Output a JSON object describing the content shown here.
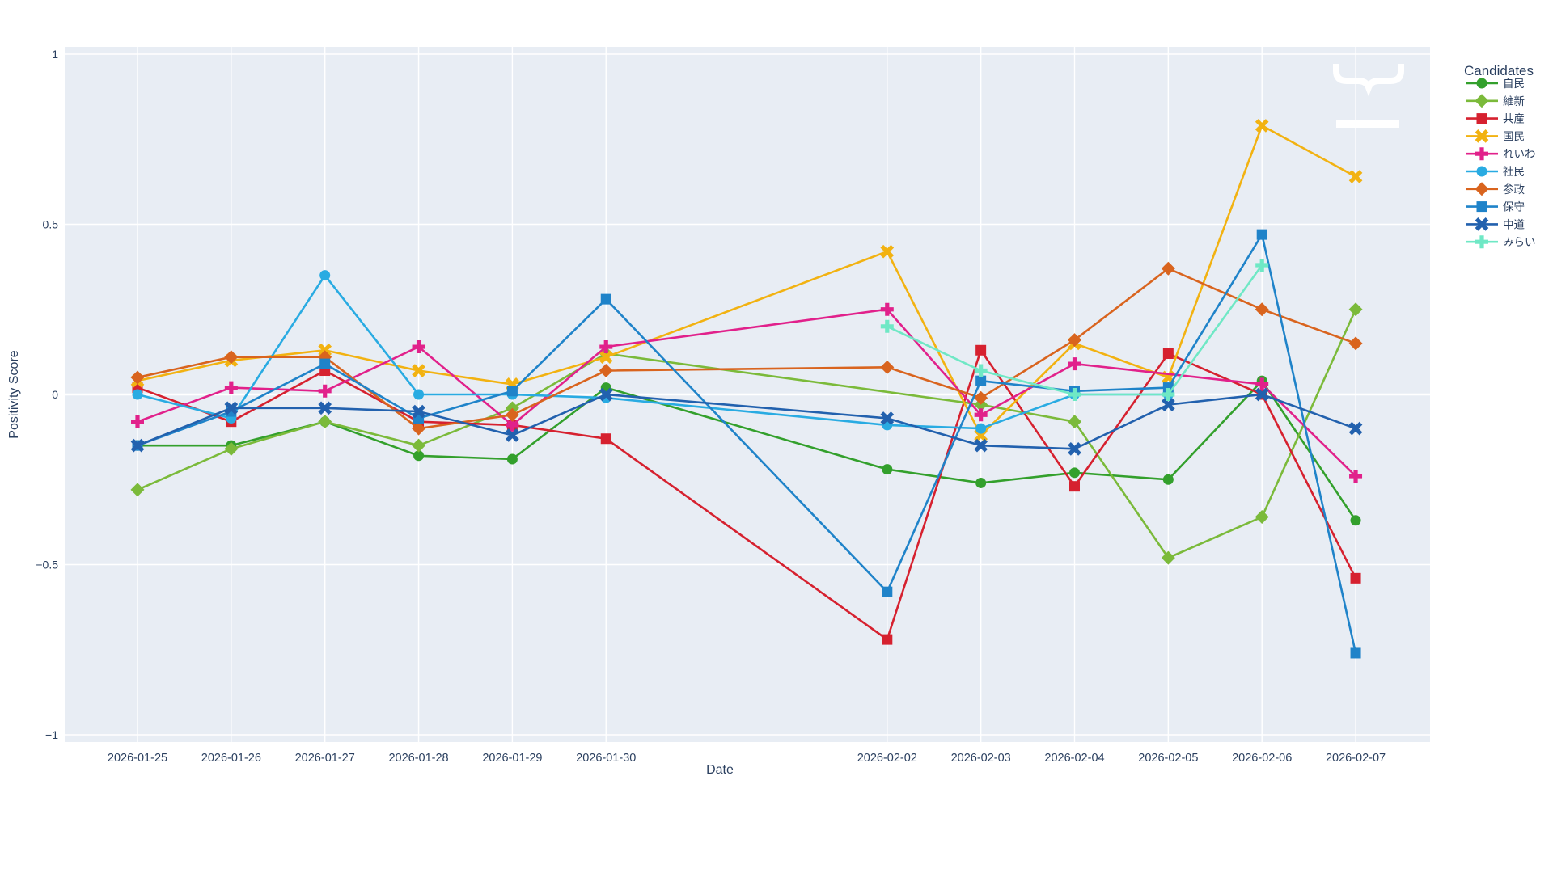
{
  "chart_data": {
    "type": "line",
    "title": "",
    "xlabel": "Date",
    "ylabel": "Positivity Score",
    "legend_title": "Candidates",
    "background_color": "#e8edf4",
    "grid_color": "#ffffff",
    "text_color": "#2a3f5f",
    "ylim": [
      -1,
      1
    ],
    "yticks": [
      {
        "v": 1,
        "label": "1"
      },
      {
        "v": 0.5,
        "label": "0.5"
      },
      {
        "v": 0,
        "label": "0"
      },
      {
        "v": -0.5,
        "label": "−0.5"
      },
      {
        "v": -1,
        "label": "−1"
      }
    ],
    "x_tick_labels": [
      "2026-01-25",
      "2026-01-26",
      "2026-01-27",
      "2026-01-28",
      "2026-01-29",
      "2026-01-30",
      "2026-02-02",
      "2026-02-03",
      "2026-02-04",
      "2026-02-05",
      "2026-02-06",
      "2026-02-07"
    ],
    "x_day_offsets": [
      0,
      1,
      2,
      3,
      4,
      5,
      8,
      9,
      10,
      11,
      12,
      13
    ],
    "series": [
      {
        "key": "jimin",
        "name": "自民",
        "color": "#33a02c",
        "symbol": "circle",
        "values": [
          -0.15,
          -0.15,
          -0.08,
          -0.18,
          -0.19,
          0.02,
          -0.22,
          -0.26,
          -0.23,
          -0.25,
          0.04,
          -0.37
        ]
      },
      {
        "key": "ishin",
        "name": "維新",
        "color": "#7bba3a",
        "symbol": "diamond",
        "values": [
          -0.28,
          -0.16,
          -0.08,
          -0.15,
          -0.04,
          0.12,
          null,
          -0.03,
          -0.08,
          -0.48,
          -0.36,
          0.25
        ]
      },
      {
        "key": "kyosan",
        "name": "共産",
        "color": "#d6212f",
        "symbol": "square",
        "values": [
          0.02,
          -0.08,
          0.07,
          -0.08,
          -0.09,
          -0.13,
          -0.72,
          0.13,
          -0.27,
          0.12,
          0.0,
          -0.54
        ]
      },
      {
        "key": "kokumin",
        "name": "国民",
        "color": "#f2b211",
        "symbol": "x",
        "values": [
          0.04,
          0.1,
          0.13,
          0.07,
          0.03,
          0.11,
          0.42,
          -0.12,
          0.15,
          0.05,
          0.79,
          0.64
        ]
      },
      {
        "key": "reiwa",
        "name": "れいわ",
        "color": "#e1218b",
        "symbol": "cross",
        "values": [
          -0.08,
          0.02,
          0.01,
          0.14,
          -0.09,
          0.14,
          0.25,
          -0.06,
          0.09,
          null,
          0.03,
          -0.24
        ]
      },
      {
        "key": "shamin",
        "name": "社民",
        "color": "#29abe2",
        "symbol": "circle",
        "values": [
          0.0,
          -0.07,
          0.35,
          0.0,
          0.0,
          -0.01,
          -0.09,
          -0.1,
          0.0,
          0.0,
          null,
          null
        ]
      },
      {
        "key": "sansei",
        "name": "参政",
        "color": "#d9641e",
        "symbol": "diamond",
        "values": [
          0.05,
          0.11,
          0.11,
          -0.1,
          -0.06,
          0.07,
          0.08,
          -0.01,
          0.16,
          0.37,
          0.25,
          0.15
        ]
      },
      {
        "key": "hoshu",
        "name": "保守",
        "color": "#1f83c9",
        "symbol": "square",
        "values": [
          -0.15,
          -0.05,
          0.09,
          -0.07,
          0.01,
          0.28,
          -0.58,
          0.04,
          0.01,
          0.02,
          0.47,
          -0.76
        ]
      },
      {
        "key": "chudo",
        "name": "中道",
        "color": "#2261ae",
        "symbol": "x",
        "values": [
          -0.15,
          -0.04,
          -0.04,
          -0.05,
          -0.12,
          0.0,
          -0.07,
          -0.15,
          -0.16,
          -0.03,
          0.0,
          -0.1
        ]
      },
      {
        "key": "mirai",
        "name": "みらい",
        "color": "#6fe8c5",
        "symbol": "cross",
        "values": [
          null,
          null,
          null,
          null,
          null,
          null,
          0.2,
          0.07,
          0.0,
          0.0,
          0.38,
          null
        ]
      }
    ],
    "annotations": [
      {
        "name": "white-underbrace",
        "color": "#ffffff"
      },
      {
        "name": "white-dash",
        "color": "#ffffff"
      }
    ]
  }
}
